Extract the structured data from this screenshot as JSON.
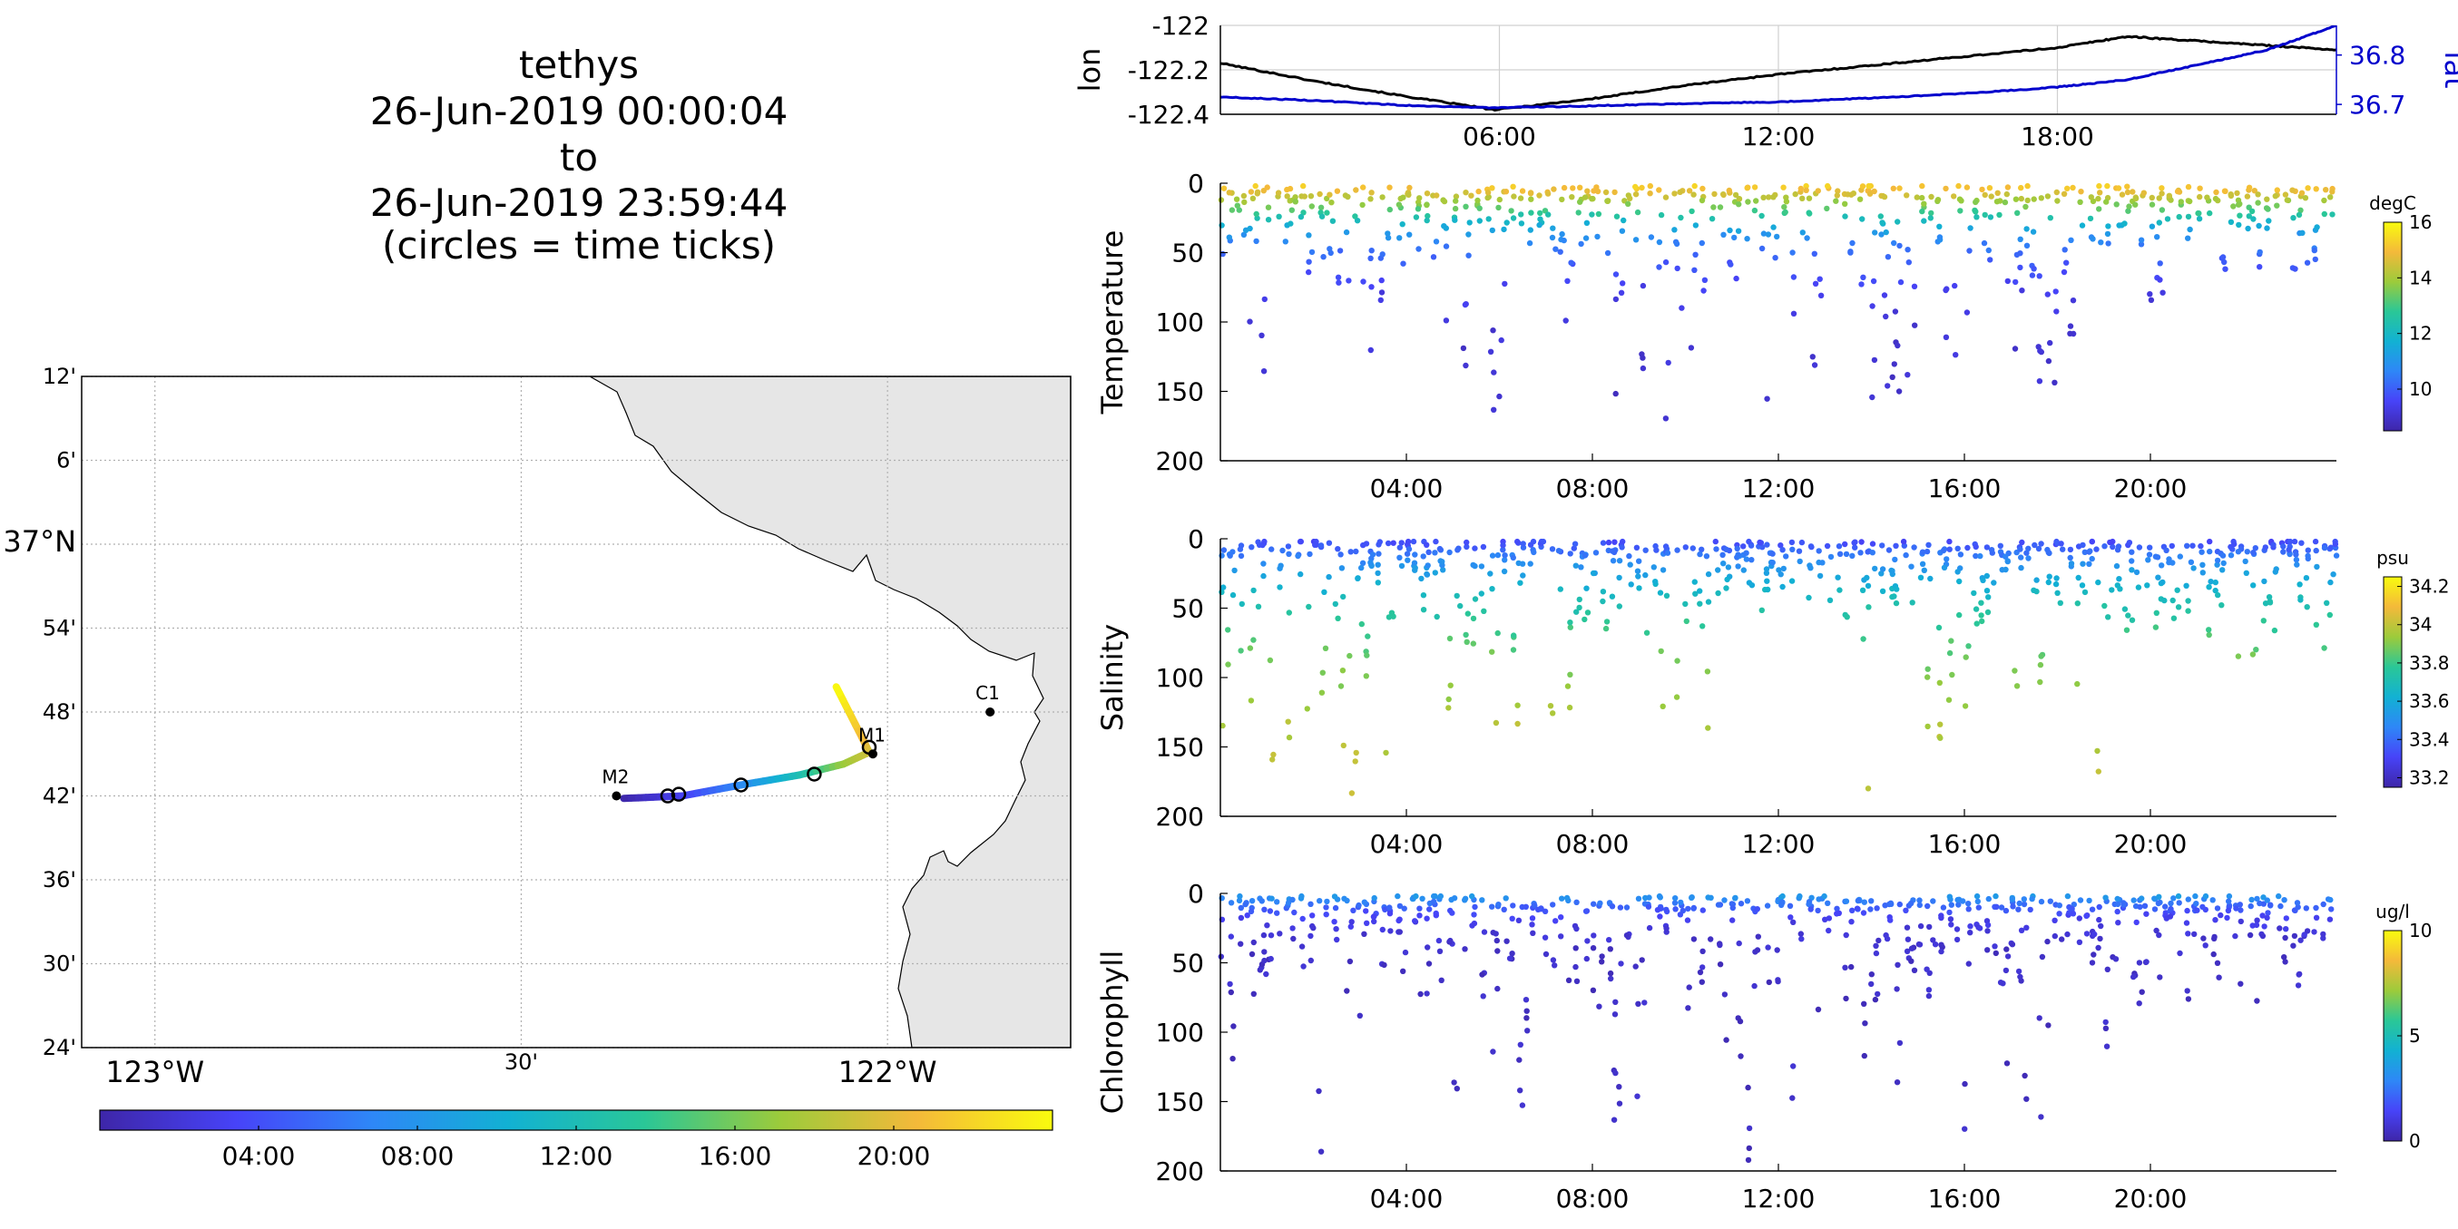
{
  "title": {
    "lines": [
      "tethys",
      "26-Jun-2019 00:00:04",
      "to",
      "26-Jun-2019 23:59:44",
      "(circles = time ticks)"
    ]
  },
  "colors": {
    "lon_line": "#000000",
    "lat_line": "#0000cc",
    "land": "#e6e6e6",
    "grid": "#b0b0b0",
    "colormap": [
      "#3e26a8",
      "#4743f8",
      "#2e87f7",
      "#12b1d3",
      "#2ac797",
      "#9ccb3b",
      "#f4b93a",
      "#f9fb0e"
    ]
  },
  "map": {
    "lat_ticks": [
      "12'",
      "6'",
      "37°N",
      "54'",
      "48'",
      "42'",
      "36'",
      "30'",
      "24'"
    ],
    "lon_ticks": [
      "123°W",
      "30'",
      "122°W"
    ],
    "lat_values": [
      37.2,
      37.1,
      37.0,
      36.9,
      36.8,
      36.7,
      36.6,
      36.5,
      36.4
    ],
    "lon_values": [
      -123.0,
      -122.5,
      -122.0
    ],
    "lat_range": [
      36.4,
      37.2
    ],
    "lon_range": [
      -123.1,
      -121.75
    ],
    "moorings": [
      {
        "label": "M2",
        "lon": -122.37,
        "lat": 36.7
      },
      {
        "label": "M1",
        "lon": -122.02,
        "lat": 36.75
      },
      {
        "label": "C1",
        "lon": -121.86,
        "lat": 36.8
      }
    ],
    "track": [
      {
        "lon": -122.36,
        "lat": 36.697,
        "t": 0
      },
      {
        "lon": -122.28,
        "lat": 36.7,
        "t": 3
      },
      {
        "lon": -122.2,
        "lat": 36.713,
        "t": 7
      },
      {
        "lon": -122.12,
        "lat": 36.725,
        "t": 12
      },
      {
        "lon": -122.06,
        "lat": 36.738,
        "t": 17
      },
      {
        "lon": -122.025,
        "lat": 36.752,
        "t": 19
      },
      {
        "lon": -122.035,
        "lat": 36.77,
        "t": 20.5
      },
      {
        "lon": -122.07,
        "lat": 36.83,
        "t": 24
      }
    ],
    "time_tick_circles": [
      {
        "lon": -122.3,
        "lat": 36.7
      },
      {
        "lon": -122.285,
        "lat": 36.702
      },
      {
        "lon": -122.2,
        "lat": 36.713
      },
      {
        "lon": -122.1,
        "lat": 36.726
      },
      {
        "lon": -122.025,
        "lat": 36.758
      }
    ]
  },
  "time_colorbar": {
    "ticks": [
      "04:00",
      "08:00",
      "12:00",
      "16:00",
      "20:00"
    ],
    "tick_hours": [
      4,
      8,
      12,
      16,
      20
    ],
    "range": [
      0,
      24
    ]
  },
  "chart_data": [
    {
      "type": "line",
      "ylabel": "lon",
      "y2label": "lat",
      "x_ticks": [
        "06:00",
        "12:00",
        "18:00"
      ],
      "x_tick_hours": [
        6,
        12,
        18
      ],
      "xlim": [
        0,
        24
      ],
      "ylim": [
        -122.4,
        -122.0
      ],
      "y_ticks": [
        "-122",
        "-122.2",
        "-122.4"
      ],
      "y_tick_values": [
        -122.0,
        -122.2,
        -122.4
      ],
      "y2lim": [
        36.68,
        36.86
      ],
      "y2_ticks": [
        "36.8",
        "36.7"
      ],
      "y2_tick_values": [
        36.8,
        36.7
      ],
      "series": [
        {
          "axis": "left",
          "x": [
            0,
            2,
            4,
            5.9,
            8,
            10,
            12,
            14,
            16,
            18,
            19.5,
            21,
            22.5,
            24
          ],
          "y": [
            -122.17,
            -122.25,
            -122.32,
            -122.38,
            -122.33,
            -122.27,
            -122.22,
            -122.18,
            -122.14,
            -122.1,
            -122.05,
            -122.07,
            -122.09,
            -122.11
          ]
        },
        {
          "axis": "right",
          "x": [
            0,
            2,
            4,
            5.9,
            8,
            10,
            12,
            14,
            16,
            18,
            19.5,
            21,
            22.5,
            24
          ],
          "y": [
            36.715,
            36.708,
            36.698,
            36.693,
            36.697,
            36.702,
            36.705,
            36.713,
            36.722,
            36.735,
            36.75,
            36.78,
            36.81,
            36.86
          ]
        }
      ]
    },
    {
      "type": "scatter",
      "ylabel": "Temperature",
      "units": "degC",
      "x_ticks": [
        "04:00",
        "08:00",
        "12:00",
        "16:00",
        "20:00"
      ],
      "x_tick_hours": [
        4,
        8,
        12,
        16,
        20
      ],
      "xlim": [
        0,
        24
      ],
      "ylim": [
        0,
        200
      ],
      "y_ticks": [
        "0",
        "50",
        "100",
        "150",
        "200"
      ],
      "y_tick_values": [
        0,
        50,
        100,
        150,
        200
      ],
      "clim": [
        8.5,
        16
      ],
      "cbar_ticks": [
        "16",
        "14",
        "12",
        "10"
      ],
      "cbar_tick_values": [
        16,
        14,
        12,
        10
      ],
      "seed": 11,
      "profile": {
        "surface": 15.5,
        "thermocline": 20,
        "deep": 9,
        "depth_scale": 25
      },
      "deep_cutoff_hour": 19.3
    },
    {
      "type": "scatter",
      "ylabel": "Salinity",
      "units": "psu",
      "x_ticks": [
        "04:00",
        "08:00",
        "12:00",
        "16:00",
        "20:00"
      ],
      "x_tick_hours": [
        4,
        8,
        12,
        16,
        20
      ],
      "xlim": [
        0,
        24
      ],
      "ylim": [
        0,
        200
      ],
      "y_ticks": [
        "0",
        "50",
        "100",
        "150",
        "200"
      ],
      "y_tick_values": [
        0,
        50,
        100,
        150,
        200
      ],
      "clim": [
        33.15,
        34.25
      ],
      "cbar_ticks": [
        "34.2",
        "34",
        "33.8",
        "33.6",
        "33.4",
        "33.2"
      ],
      "cbar_tick_values": [
        34.2,
        34.0,
        33.8,
        33.6,
        33.4,
        33.2
      ],
      "seed": 23,
      "profile": {
        "surface": 33.3,
        "deep": 34.05,
        "depth_scale": 60
      },
      "deep_cutoff_hour": 19.3
    },
    {
      "type": "scatter",
      "ylabel": "Chlorophyll",
      "units": "ug/l",
      "x_ticks": [
        "04:00",
        "08:00",
        "12:00",
        "16:00",
        "20:00"
      ],
      "x_tick_hours": [
        4,
        8,
        12,
        16,
        20
      ],
      "xlim": [
        0,
        24
      ],
      "ylim": [
        0,
        200
      ],
      "y_ticks": [
        "0",
        "50",
        "100",
        "150",
        "200"
      ],
      "y_tick_values": [
        0,
        50,
        100,
        150,
        200
      ],
      "clim": [
        0,
        10
      ],
      "cbar_ticks": [
        "10",
        "5",
        "0"
      ],
      "cbar_tick_values": [
        10,
        5,
        0
      ],
      "seed": 37,
      "profile": {
        "surface": 4.0,
        "deep": 0.5,
        "depth_scale": 12
      },
      "deep_cutoff_hour": 19.3
    }
  ]
}
